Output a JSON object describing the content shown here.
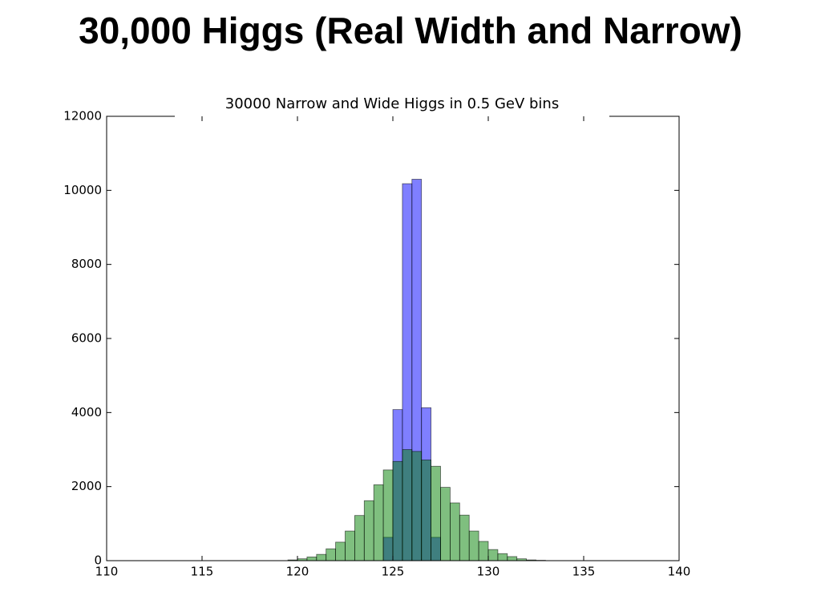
{
  "title": "30,000 Higgs (Real Width and Narrow)",
  "chart_data": {
    "type": "histogram",
    "title": "30000 Narrow and Wide Higgs in 0.5 GeV bins",
    "bins": [
      110,
      110.5,
      111,
      111.5,
      112,
      112.5,
      113,
      113.5,
      114,
      114.5,
      115,
      115.5,
      116,
      116.5,
      117,
      117.5,
      118,
      118.5,
      119,
      119.5,
      120,
      120.5,
      121,
      121.5,
      122,
      122.5,
      123,
      123.5,
      124,
      124.5,
      125,
      125.5,
      126,
      126.5,
      127,
      127.5,
      128,
      128.5,
      129,
      129.5,
      130,
      130.5,
      131,
      131.5,
      132,
      132.5,
      133,
      133.5,
      134,
      134.5,
      135,
      135.5,
      136,
      136.5,
      137,
      137.5,
      138,
      138.5,
      139,
      139.5,
      140
    ],
    "series": [
      {
        "name": "Narrow",
        "color": "#0000ff",
        "values": [
          0,
          0,
          0,
          0,
          0,
          0,
          0,
          0,
          0,
          0,
          0,
          0,
          0,
          0,
          0,
          0,
          0,
          0,
          0,
          0,
          0,
          0,
          0,
          0,
          0,
          0,
          0,
          0,
          0,
          630,
          4080,
          10180,
          10300,
          4130,
          630,
          0,
          0,
          0,
          0,
          0,
          0,
          0,
          0,
          0,
          0,
          0,
          0,
          0,
          0,
          0,
          0,
          0,
          0,
          0,
          0,
          0,
          0,
          0,
          0,
          0
        ]
      },
      {
        "name": "Wide",
        "color": "#008000",
        "values": [
          0,
          0,
          0,
          0,
          0,
          0,
          0,
          0,
          0,
          0,
          0,
          0,
          0,
          0,
          0,
          0,
          0,
          0,
          0,
          20,
          50,
          100,
          170,
          320,
          500,
          800,
          1220,
          1620,
          2050,
          2450,
          2680,
          3000,
          2950,
          2720,
          2550,
          1980,
          1560,
          1230,
          800,
          520,
          300,
          190,
          110,
          50,
          20,
          10,
          0,
          0,
          0,
          0,
          0,
          0,
          0,
          0,
          0,
          0,
          0,
          0,
          0,
          0
        ]
      }
    ],
    "xlim": [
      110,
      140
    ],
    "ylim": [
      0,
      12000
    ],
    "xticks": [
      110,
      115,
      120,
      125,
      130,
      135,
      140
    ],
    "yticks": [
      0,
      2000,
      4000,
      6000,
      8000,
      10000,
      12000
    ],
    "grid": false
  }
}
